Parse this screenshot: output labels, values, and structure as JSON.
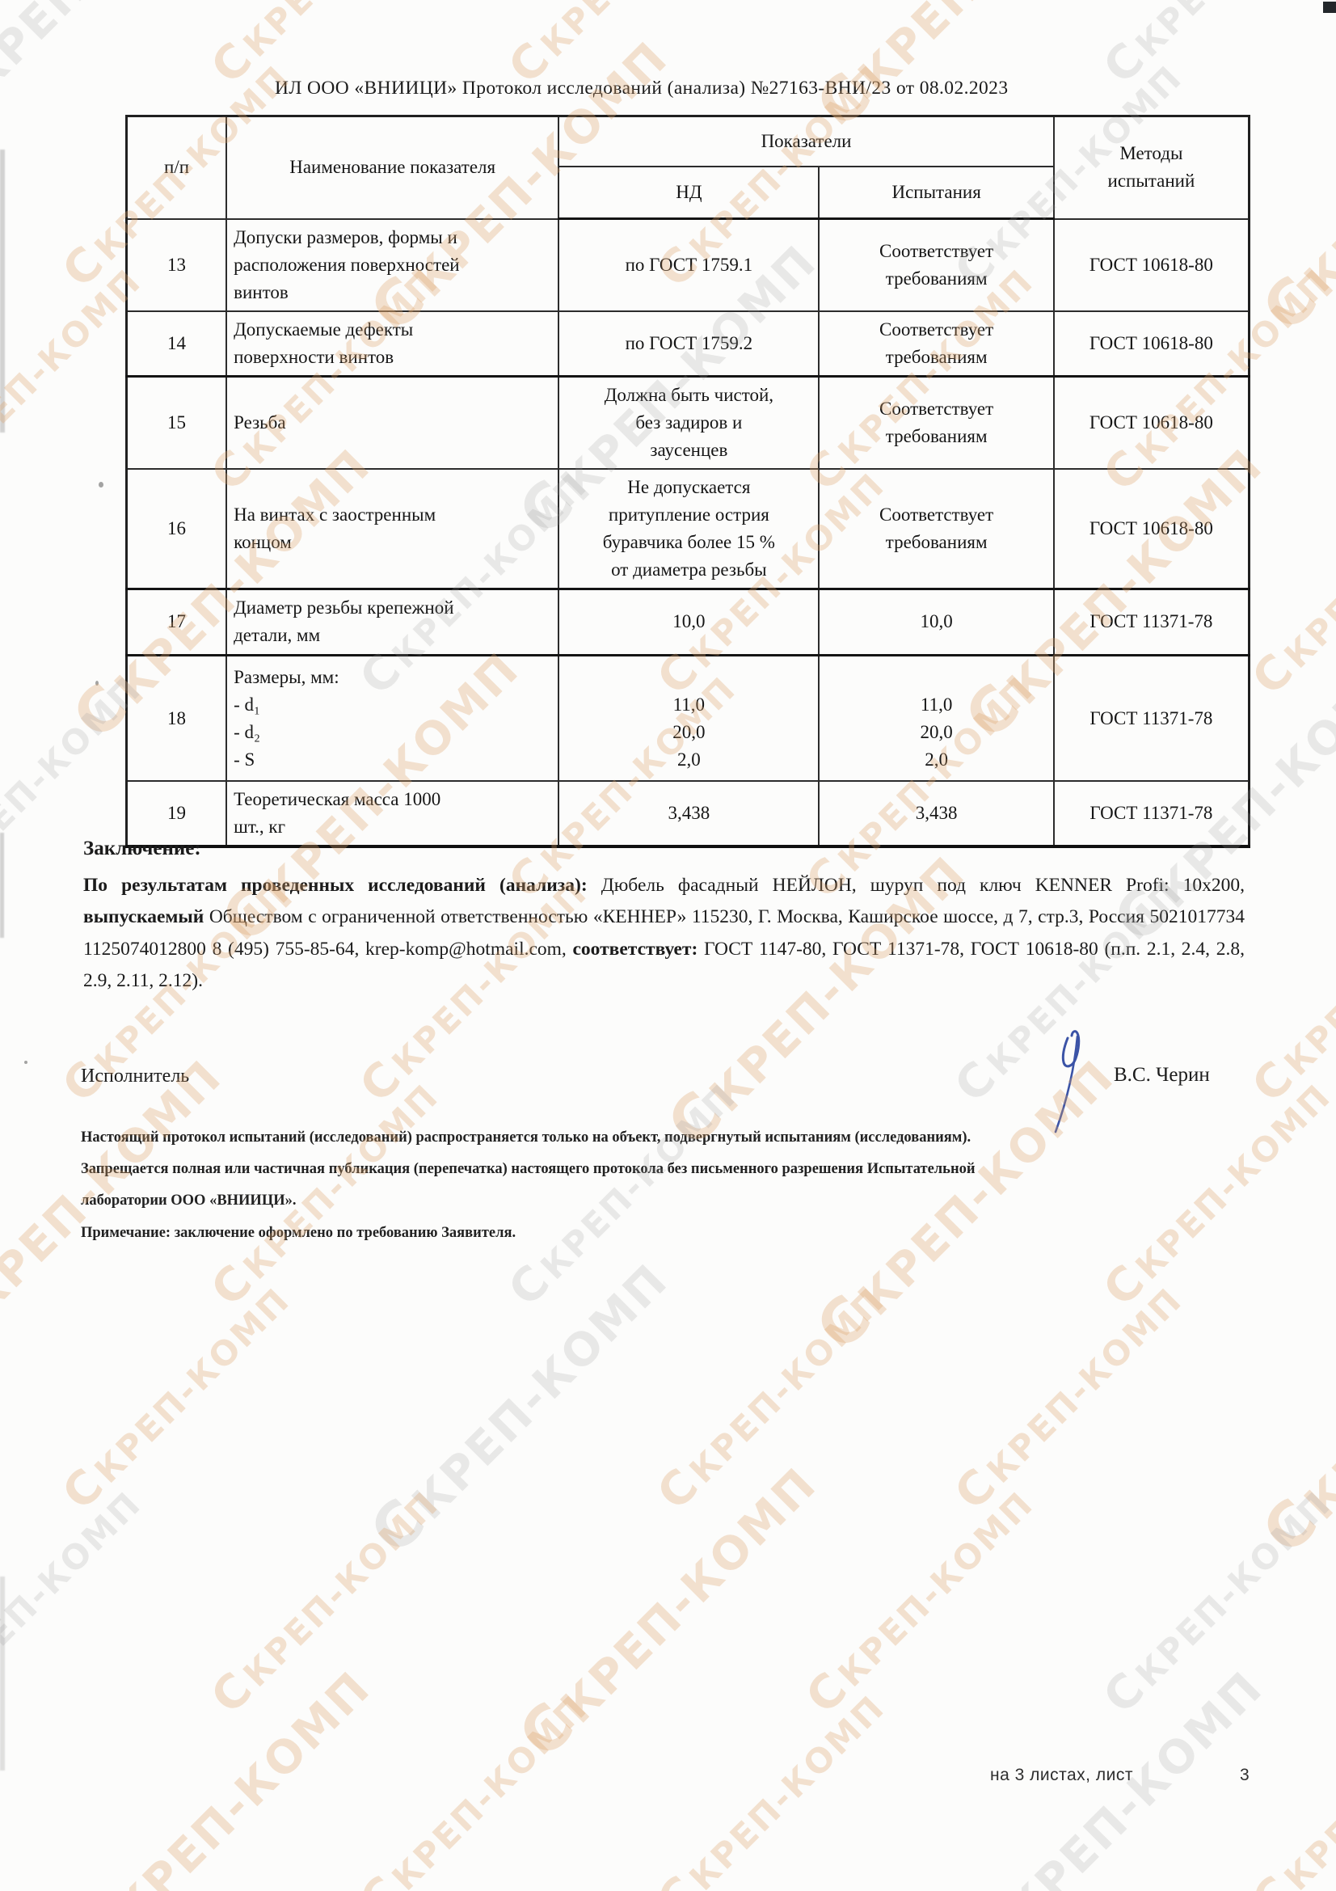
{
  "document": {
    "header_line": "ИЛ ООО «ВНИИЦИ»  Протокол исследований (анализа)  №27163-ВНИ/23 от  08.02.2023"
  },
  "table": {
    "headers": {
      "num": "п/п",
      "name": "Наименование показателя",
      "indicators": "Показатели",
      "nd": "НД",
      "test": "Испытания",
      "methods": [
        "Методы",
        "испытаний"
      ]
    },
    "rows": [
      {
        "num": "13",
        "name": [
          "Допуски размеров, формы и",
          "расположения поверхностей",
          "винтов"
        ],
        "nd": "по ГОСТ 1759.1",
        "test": [
          "Соответствует",
          "требованиям"
        ],
        "method": "ГОСТ 10618-80"
      },
      {
        "num": "14",
        "name": [
          "Допускаемые дефекты",
          "поверхности винтов"
        ],
        "nd": "по ГОСТ 1759.2",
        "test": [
          "Соответствует",
          "требованиям"
        ],
        "method": "ГОСТ 10618-80"
      },
      {
        "num": "15",
        "name": "Резьба",
        "nd": [
          "Должна быть чистой,",
          "без задиров и",
          "заусенцев"
        ],
        "test": [
          "Соответствует",
          "требованиям"
        ],
        "method": "ГОСТ 10618-80"
      },
      {
        "num": "16",
        "name": [
          "На винтах с заостренным",
          "концом"
        ],
        "nd": [
          "Не допускается",
          "притупление острия",
          "буравчика более 15 %",
          "от диаметра резьбы"
        ],
        "test": [
          "Соответствует",
          "требованиям"
        ],
        "method": "ГОСТ 10618-80"
      },
      {
        "num": "17",
        "name": [
          "Диаметр резьбы крепежной",
          "детали, мм"
        ],
        "nd": "10,0",
        "test": "10,0",
        "method": "ГОСТ 11371-78"
      },
      {
        "num": "18",
        "name": [
          "Размеры, мм:",
          "- d₁",
          "- d₂",
          "- S"
        ],
        "nd": [
          "",
          "11,0",
          "20,0",
          "2,0"
        ],
        "test": [
          "",
          "11,0",
          "20,0",
          "2,0"
        ],
        "method": "ГОСТ 11371-78"
      },
      {
        "num": "19",
        "name": [
          "Теоретическая масса 1000",
          "шт., кг"
        ],
        "nd": "3,438",
        "test": "3,438",
        "method": "ГОСТ 11371-78"
      }
    ]
  },
  "conclusion": {
    "heading": "Заключение:",
    "segments": [
      {
        "text": "По результатам проведенных исследований (анализа): ",
        "bold": true
      },
      {
        "text": "Дюбель фасадный НЕЙЛОН, шуруп под ключ KENNER Profi: 10х200, ",
        "bold": false
      },
      {
        "text": "выпускаемый ",
        "bold": true
      },
      {
        "text": "Обществом с ограниченной ответственностью «КЕННЕР» 115230, Г. Москва, Каширское шоссе, д 7, стр.3, Россия 5021017734 1125074012800 8 (495) 755-85-64, krep-komp@hotmail.com, ",
        "bold": false
      },
      {
        "text": "соответствует: ",
        "bold": true
      },
      {
        "text": "ГОСТ 1147-80, ГОСТ 11371-78, ГОСТ 10618-80 (п.п. 2.1, 2.4, 2.8, 2.9, 2.11, 2.12).",
        "bold": false
      }
    ]
  },
  "executor": {
    "label": "Исполнитель",
    "name": "В.С. Черин"
  },
  "footnotes": [
    "Настоящий протокол испытаний (исследований) распространяется только на объект, подвергнутый испытаниям (исследованиям).",
    "Запрещается полная или частичная публикация (перепечатка) настоящего протокола без письменного разрешения Испытательной",
    "лаборатории  ООО «ВНИИЦИ».",
    "Примечание: заключение оформлено по требованию Заявителя."
  ],
  "page_footer": {
    "sheets_label": "на 3 листах, лист",
    "page_number": "3"
  },
  "watermark": {
    "logo": "Ϲ",
    "text": "КРЕП-КОМП"
  },
  "colors": {
    "watermark_orange": "#dea36a",
    "watermark_gray": "#9a9a9a",
    "signature_blue": "#3b53a6"
  }
}
